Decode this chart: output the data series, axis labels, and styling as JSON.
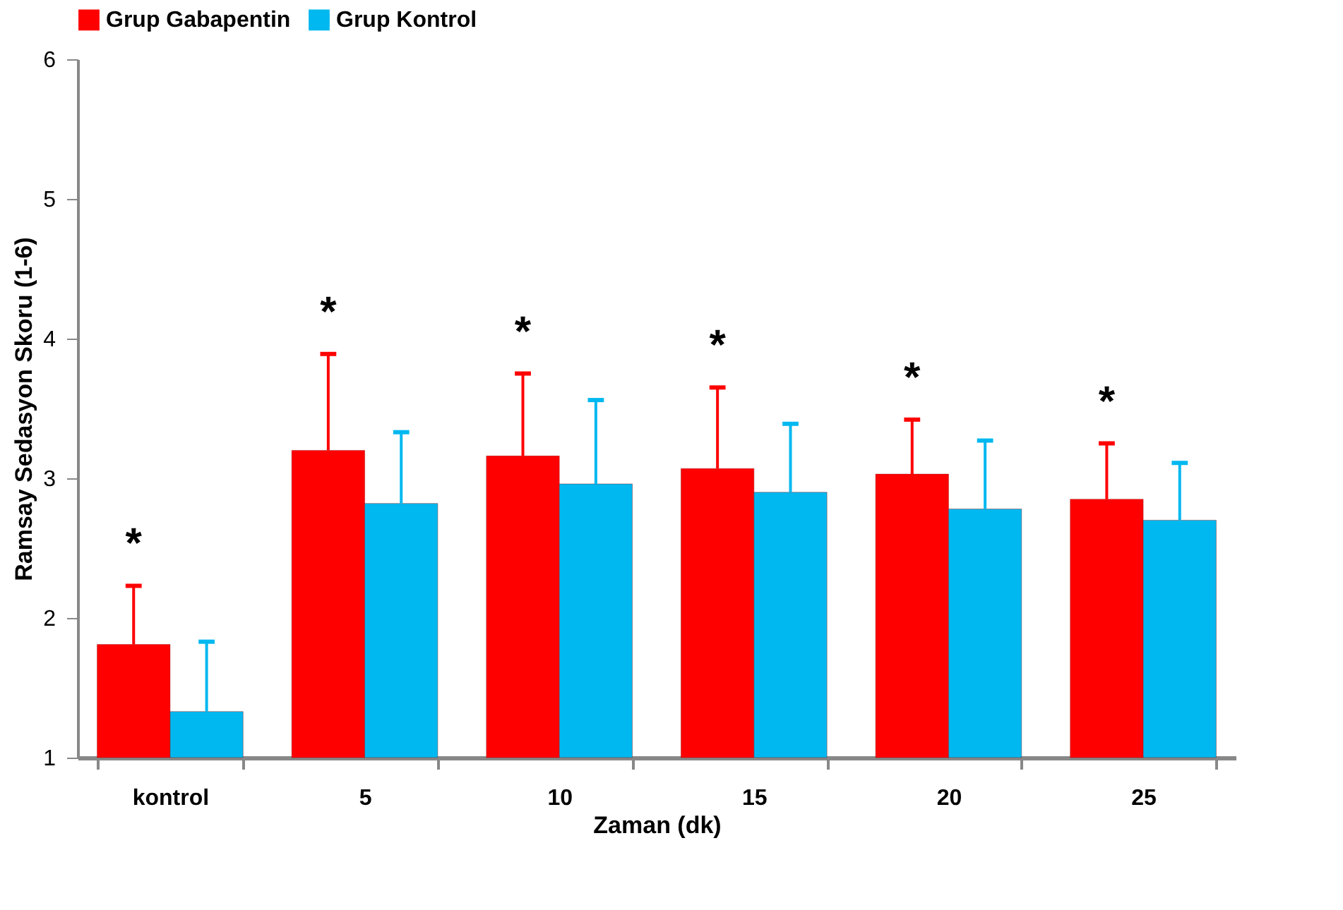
{
  "chart_data": {
    "type": "bar",
    "xlabel": "Zaman (dk)",
    "ylabel": "Ramsay Sedasyon Skoru (1-6)",
    "categories": [
      "kontrol",
      "5",
      "10",
      "15",
      "20",
      "25"
    ],
    "series": [
      {
        "name": "Grup Gabapentin",
        "color": "#ff0000",
        "values": [
          1.81,
          3.2,
          3.16,
          3.07,
          3.03,
          2.85
        ],
        "errors": [
          [
            1.81,
            2.23
          ],
          [
            3.2,
            3.89
          ],
          [
            3.16,
            3.75
          ],
          [
            3.07,
            3.65
          ],
          [
            3.03,
            3.42
          ],
          [
            2.85,
            3.25
          ]
        ]
      },
      {
        "name": "Grup Kontrol",
        "color": "#00b8f0",
        "values": [
          1.33,
          2.82,
          2.96,
          2.9,
          2.78,
          2.7
        ],
        "errors": [
          [
            1.33,
            1.83
          ],
          [
            2.82,
            3.33
          ],
          [
            2.96,
            3.56
          ],
          [
            2.9,
            3.39
          ],
          [
            2.78,
            3.27
          ],
          [
            2.7,
            3.11
          ]
        ]
      }
    ],
    "annotations": [
      "*",
      "*",
      "*",
      "*",
      "*",
      "*"
    ],
    "ylim": [
      1,
      6
    ],
    "yticks": [
      1,
      2,
      3,
      4,
      5,
      6
    ],
    "grid": false,
    "legend": "top"
  }
}
